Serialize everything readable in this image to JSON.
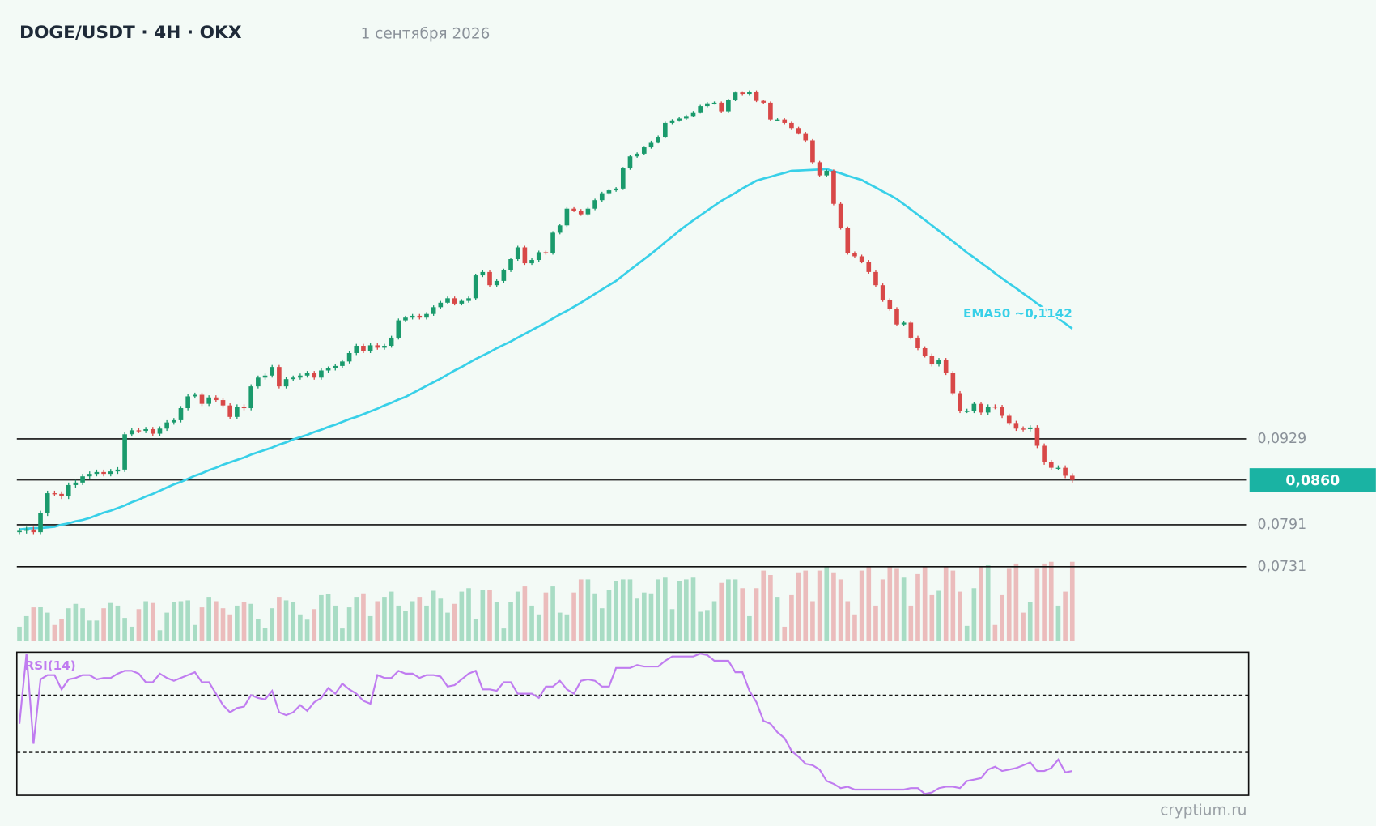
{
  "chart_data": {
    "type": "candlestick",
    "title": "DOGE/USDT · 4H · OKX",
    "subtitle": "1 сентября 2026",
    "watermark": "cryptium.ru",
    "log": true,
    "ylim": [
      0.07,
      0.19
    ],
    "up_color": "#1a9a6c",
    "down_color": "#d84848",
    "levels": [
      {
        "value": 0.0929,
        "label": "0,0929"
      },
      {
        "value": 0.0791,
        "label": "0,0791"
      },
      {
        "value": 0.0731,
        "label": "0,0731"
      }
    ],
    "last_price": {
      "value": 0.086,
      "label": "0,0860",
      "color": "#1ab3a3"
    },
    "open": [
      0.078,
      0.0782,
      0.0784,
      0.078,
      0.0808,
      0.0839,
      0.0838,
      0.0834,
      0.0852,
      0.0856,
      0.0866,
      0.087,
      0.0873,
      0.087,
      0.0874,
      0.0877,
      0.0937,
      0.0944,
      0.0943,
      0.0946,
      0.0938,
      0.0947,
      0.0958,
      0.0962,
      0.0984,
      0.1006,
      0.1009,
      0.0992,
      0.1004,
      0.0999,
      0.0989,
      0.0968,
      0.0987,
      0.0984,
      0.1025,
      0.1042,
      0.1046,
      0.1063,
      0.1025,
      0.1039,
      0.1042,
      0.1046,
      0.1051,
      0.1042,
      0.1056,
      0.106,
      0.1065,
      0.1074,
      0.1091,
      0.1106,
      0.1095,
      0.1107,
      0.1102,
      0.1106,
      0.1123,
      0.116,
      0.1166,
      0.117,
      0.1166,
      0.1174,
      0.1189,
      0.1199,
      0.1209,
      0.1197,
      0.1203,
      0.1209,
      0.1262,
      0.127,
      0.1239,
      0.1249,
      0.1274,
      0.1301,
      0.133,
      0.1291,
      0.1299,
      0.1318,
      0.1316,
      0.1367,
      0.1386,
      0.143,
      0.1425,
      0.1415,
      0.143,
      0.1453,
      0.1472,
      0.148,
      0.1485,
      0.1542,
      0.1577,
      0.1585,
      0.1604,
      0.162,
      0.1636,
      0.1679,
      0.1687,
      0.1693,
      0.1701,
      0.1713,
      0.1733,
      0.1742,
      0.1744,
      0.1716,
      0.1753,
      0.1778,
      0.1773,
      0.1781,
      0.175,
      0.1744,
      0.169,
      0.169,
      0.1679,
      0.1663,
      0.1647,
      0.1625,
      0.156,
      0.1522,
      0.1535,
      0.1443,
      0.1379,
      0.1316,
      0.1308,
      0.1295,
      0.127,
      0.1239,
      0.1205,
      0.1185,
      0.1151,
      0.1155,
      0.1123,
      0.1101,
      0.1086,
      0.1068,
      0.1077,
      0.1051,
      0.1012,
      0.0979,
      0.0979,
      0.0992,
      0.0976,
      0.0987,
      0.0986,
      0.097,
      0.0957,
      0.0947,
      0.0946,
      0.0949,
      0.0917,
      0.0889,
      0.088,
      0.088,
      0.0867
    ],
    "high": [
      0.0786,
      0.0788,
      0.0788,
      0.0812,
      0.0843,
      0.0843,
      0.0842,
      0.0856,
      0.086,
      0.087,
      0.0874,
      0.0877,
      0.0877,
      0.0878,
      0.0881,
      0.0941,
      0.0948,
      0.0948,
      0.095,
      0.095,
      0.0951,
      0.0962,
      0.0966,
      0.0988,
      0.101,
      0.1013,
      0.1013,
      0.1008,
      0.1008,
      0.1003,
      0.0993,
      0.0991,
      0.0991,
      0.1029,
      0.1046,
      0.105,
      0.1067,
      0.1067,
      0.1043,
      0.1046,
      0.105,
      0.1055,
      0.1055,
      0.106,
      0.1064,
      0.1069,
      0.1078,
      0.1095,
      0.111,
      0.111,
      0.1111,
      0.1111,
      0.111,
      0.1127,
      0.1164,
      0.117,
      0.1174,
      0.1174,
      0.1178,
      0.1193,
      0.1203,
      0.1213,
      0.1213,
      0.1207,
      0.1213,
      0.1266,
      0.1274,
      0.1274,
      0.1253,
      0.1278,
      0.1305,
      0.1334,
      0.1334,
      0.1303,
      0.1322,
      0.1322,
      0.1371,
      0.139,
      0.1434,
      0.1434,
      0.1429,
      0.1434,
      0.1457,
      0.1476,
      0.1484,
      0.1489,
      0.1546,
      0.1581,
      0.1589,
      0.1608,
      0.1624,
      0.164,
      0.1683,
      0.1691,
      0.1697,
      0.1705,
      0.1717,
      0.1737,
      0.1746,
      0.1748,
      0.1748,
      0.1757,
      0.1782,
      0.1782,
      0.1785,
      0.1785,
      0.1754,
      0.1748,
      0.1694,
      0.1694,
      0.1683,
      0.1667,
      0.1651,
      0.1629,
      0.1564,
      0.1539,
      0.1539,
      0.1447,
      0.1383,
      0.132,
      0.1312,
      0.1299,
      0.1274,
      0.1243,
      0.1209,
      0.1189,
      0.1159,
      0.1159,
      0.1127,
      0.1105,
      0.109,
      0.1081,
      0.1081,
      0.1055,
      0.1016,
      0.0983,
      0.0996,
      0.0996,
      0.0991,
      0.0991,
      0.099,
      0.0974,
      0.0961,
      0.0951,
      0.0953,
      0.0953,
      0.0921,
      0.0893,
      0.0884,
      0.0884,
      0.0871
    ],
    "low": [
      0.0776,
      0.0778,
      0.0776,
      0.0776,
      0.0804,
      0.0834,
      0.083,
      0.083,
      0.0848,
      0.0852,
      0.0862,
      0.0866,
      0.0866,
      0.0866,
      0.087,
      0.0873,
      0.0933,
      0.0939,
      0.0939,
      0.0934,
      0.0934,
      0.0943,
      0.0954,
      0.0958,
      0.098,
      0.1002,
      0.0988,
      0.0988,
      0.0995,
      0.0985,
      0.0964,
      0.0964,
      0.098,
      0.098,
      0.1021,
      0.1038,
      0.1042,
      0.1021,
      0.1021,
      0.1035,
      0.1038,
      0.1042,
      0.1038,
      0.1038,
      0.1052,
      0.1056,
      0.1061,
      0.107,
      0.1087,
      0.1091,
      0.1091,
      0.1098,
      0.1098,
      0.1102,
      0.1119,
      0.1156,
      0.1162,
      0.1162,
      0.1162,
      0.117,
      0.1185,
      0.1195,
      0.1193,
      0.1193,
      0.1199,
      0.1205,
      0.1258,
      0.1235,
      0.1235,
      0.1245,
      0.127,
      0.1297,
      0.1287,
      0.1287,
      0.1295,
      0.1312,
      0.1312,
      0.1363,
      0.1382,
      0.1421,
      0.1411,
      0.1411,
      0.1426,
      0.1449,
      0.1468,
      0.1476,
      0.1481,
      0.1538,
      0.1573,
      0.1581,
      0.16,
      0.1616,
      0.1632,
      0.1675,
      0.1683,
      0.1689,
      0.1697,
      0.1709,
      0.1729,
      0.1738,
      0.1712,
      0.1712,
      0.1749,
      0.1769,
      0.1769,
      0.1746,
      0.174,
      0.1686,
      0.1686,
      0.1675,
      0.1659,
      0.1643,
      0.1621,
      0.1556,
      0.1518,
      0.1518,
      0.1439,
      0.1375,
      0.1312,
      0.1304,
      0.1291,
      0.1266,
      0.1235,
      0.1201,
      0.1181,
      0.1147,
      0.1147,
      0.1119,
      0.1097,
      0.1082,
      0.1064,
      0.1064,
      0.1047,
      0.1008,
      0.0975,
      0.0975,
      0.0975,
      0.0972,
      0.0972,
      0.0982,
      0.0966,
      0.0953,
      0.0943,
      0.0942,
      0.0942,
      0.0913,
      0.0885,
      0.0876,
      0.0876,
      0.0863,
      0.0856
    ],
    "close": [
      0.0782,
      0.0784,
      0.078,
      0.0808,
      0.0839,
      0.0838,
      0.0834,
      0.0852,
      0.0856,
      0.0866,
      0.087,
      0.0873,
      0.087,
      0.0874,
      0.0877,
      0.0937,
      0.0944,
      0.0943,
      0.0946,
      0.0938,
      0.0947,
      0.0958,
      0.0962,
      0.0984,
      0.1006,
      0.1009,
      0.0992,
      0.1004,
      0.0999,
      0.0989,
      0.0968,
      0.0987,
      0.0984,
      0.1025,
      0.1042,
      0.1046,
      0.1063,
      0.1025,
      0.1039,
      0.1042,
      0.1046,
      0.1051,
      0.1042,
      0.1056,
      0.106,
      0.1065,
      0.1074,
      0.1091,
      0.1106,
      0.1095,
      0.1107,
      0.1102,
      0.1106,
      0.1123,
      0.116,
      0.1166,
      0.117,
      0.1166,
      0.1174,
      0.1189,
      0.1199,
      0.1209,
      0.1197,
      0.1203,
      0.1209,
      0.1262,
      0.127,
      0.1239,
      0.1249,
      0.1274,
      0.1301,
      0.133,
      0.1291,
      0.1299,
      0.1318,
      0.1316,
      0.1367,
      0.1386,
      0.143,
      0.1425,
      0.1415,
      0.143,
      0.1453,
      0.1472,
      0.148,
      0.1485,
      0.1542,
      0.1577,
      0.1585,
      0.1604,
      0.162,
      0.1636,
      0.1679,
      0.1687,
      0.1693,
      0.1701,
      0.1713,
      0.1733,
      0.1742,
      0.1744,
      0.1716,
      0.1753,
      0.1778,
      0.1773,
      0.1781,
      0.175,
      0.1744,
      0.169,
      0.169,
      0.1679,
      0.1663,
      0.1647,
      0.1625,
      0.156,
      0.1522,
      0.1535,
      0.1443,
      0.1379,
      0.1316,
      0.1308,
      0.1295,
      0.127,
      0.1239,
      0.1205,
      0.1185,
      0.1151,
      0.1155,
      0.1123,
      0.1101,
      0.1086,
      0.1068,
      0.1077,
      0.1051,
      0.1012,
      0.0979,
      0.0979,
      0.0992,
      0.0976,
      0.0987,
      0.0986,
      0.097,
      0.0957,
      0.0947,
      0.0946,
      0.0949,
      0.0917,
      0.0889,
      0.088,
      0.088,
      0.0867,
      0.086
    ],
    "ema": {
      "name": "EMA50 ~0,1142",
      "color": "#38d0e8",
      "values": [
        0.0784,
        0.0785,
        0.0786,
        0.0786,
        0.0787,
        0.0788,
        0.0791,
        0.0793,
        0.0796,
        0.0798,
        0.0801,
        0.0805,
        0.0809,
        0.0812,
        0.0816,
        0.082,
        0.0825,
        0.0829,
        0.0834,
        0.0838,
        0.0843,
        0.0848,
        0.0853,
        0.0857,
        0.0862,
        0.0867,
        0.0871,
        0.0876,
        0.088,
        0.0885,
        0.0889,
        0.0893,
        0.0897,
        0.0902,
        0.0906,
        0.091,
        0.0914,
        0.0919,
        0.0923,
        0.0928,
        0.0932,
        0.0936,
        0.0941,
        0.0945,
        0.095,
        0.0954,
        0.0959,
        0.0964,
        0.0968,
        0.0973,
        0.0978,
        0.0983,
        0.0989,
        0.0994,
        0.1,
        0.1005,
        0.1012,
        0.1019,
        0.1026,
        0.1033,
        0.104,
        0.1048,
        0.1056,
        0.1063,
        0.1071,
        0.1079,
        0.1086,
        0.1093,
        0.1101,
        0.1108,
        0.1115,
        0.1123,
        0.1131,
        0.1139,
        0.1147,
        0.1155,
        0.1164,
        0.1173,
        0.1181,
        0.119,
        0.1199,
        0.1209,
        0.1219,
        0.1229,
        0.1239,
        0.1249,
        0.1262,
        0.1275,
        0.1288,
        0.1301,
        0.1314,
        0.1328,
        0.1343,
        0.1357,
        0.1372,
        0.1386,
        0.1399,
        0.1412,
        0.1425,
        0.1438,
        0.1451,
        0.1462,
        0.1473,
        0.1485,
        0.1496,
        0.1507,
        0.1513,
        0.1518,
        0.1524,
        0.1529,
        0.1535,
        0.1536,
        0.1537,
        0.1538,
        0.1539,
        0.154,
        0.1534,
        0.1528,
        0.1521,
        0.1515,
        0.1509,
        0.1498,
        0.1488,
        0.1477,
        0.1467,
        0.1456,
        0.1442,
        0.1428,
        0.1414,
        0.14,
        0.1386,
        0.1372,
        0.1358,
        0.1345,
        0.1331,
        0.1317,
        0.1305,
        0.1292,
        0.128,
        0.1267,
        0.1255,
        0.1243,
        0.1232,
        0.122,
        0.1209,
        0.1197,
        0.1186,
        0.1175,
        0.1164,
        0.1153,
        0.1142
      ]
    },
    "volume": {
      "ylim": [
        0,
        100
      ],
      "up_color": "#a8dcc4",
      "down_color": "#ebbcbc",
      "values": [
        16,
        28,
        38,
        39,
        32,
        18,
        25,
        37,
        42,
        37,
        23,
        23,
        37,
        43,
        40,
        26,
        16,
        36,
        45,
        43,
        12,
        32,
        44,
        45,
        46,
        18,
        38,
        50,
        45,
        37,
        30,
        40,
        44,
        42,
        25,
        15,
        37,
        50,
        46,
        44,
        30,
        24,
        36,
        52,
        53,
        40,
        14,
        38,
        50,
        54,
        28,
        45,
        50,
        56,
        40,
        34,
        45,
        50,
        40,
        57,
        48,
        32,
        42,
        56,
        60,
        25,
        58,
        58,
        44,
        14,
        44,
        56,
        62,
        40,
        30,
        55,
        62,
        32,
        30,
        55,
        70,
        70,
        54,
        37,
        58,
        68,
        70,
        70,
        48,
        55,
        54,
        70,
        72,
        36,
        68,
        70,
        72,
        33,
        35,
        45,
        66,
        70,
        70,
        60,
        28,
        60,
        80,
        75,
        50,
        16,
        52,
        78,
        80,
        45,
        80,
        84,
        78,
        70,
        45,
        30,
        80,
        85,
        40,
        70,
        84,
        82,
        72,
        40,
        76,
        85,
        52,
        57,
        85,
        80,
        56,
        17,
        60,
        84,
        86,
        18,
        52,
        82,
        88,
        32,
        44,
        82,
        88,
        90,
        40,
        56,
        90
      ]
    },
    "rsi": {
      "name": "RSI(14)",
      "color": "#c07cf0",
      "ylim": [
        0,
        100
      ],
      "levels": [
        70,
        30
      ],
      "values": [
        50,
        99,
        36,
        81,
        84,
        84,
        74,
        81,
        82,
        84,
        84,
        81,
        82,
        82,
        85,
        87,
        87,
        85,
        79,
        79,
        85,
        82,
        80,
        82,
        84,
        86,
        79,
        79,
        71,
        63,
        58,
        61,
        62,
        70,
        68,
        67,
        73,
        58,
        56,
        58,
        63,
        59,
        65,
        68,
        75,
        71,
        78,
        74,
        71,
        66,
        64,
        84,
        82,
        82,
        87,
        85,
        85,
        82,
        84,
        84,
        83,
        76,
        77,
        81,
        85,
        87,
        74,
        74,
        73,
        79,
        79,
        71,
        71,
        71,
        68,
        76,
        76,
        80,
        74,
        71,
        80,
        81,
        80,
        76,
        76,
        89,
        89,
        89,
        91,
        90,
        90,
        90,
        94,
        97,
        97,
        97,
        97,
        99,
        98,
        94,
        94,
        94,
        86,
        86,
        73,
        65,
        52,
        50,
        44,
        40,
        31,
        27,
        22,
        21,
        18,
        10,
        8,
        5,
        6,
        4,
        4,
        4,
        4,
        4,
        4,
        4,
        4,
        5,
        5,
        1,
        2,
        5,
        6,
        6,
        5,
        10,
        11,
        12,
        18,
        20,
        17,
        18,
        19,
        21,
        23,
        17,
        17,
        19,
        25,
        16,
        17
      ]
    }
  }
}
